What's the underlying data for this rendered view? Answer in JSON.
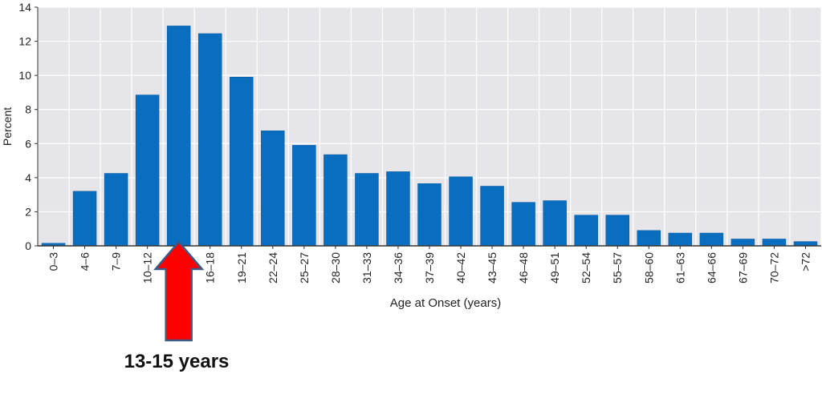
{
  "chart_data": {
    "type": "bar",
    "title": "",
    "xlabel": "Age at Onset (years)",
    "ylabel": "Percent",
    "ylim": [
      0,
      14
    ],
    "yticks": [
      0,
      2,
      4,
      6,
      8,
      10,
      12,
      14
    ],
    "grid": true,
    "categories": [
      "0–3",
      "4–6",
      "7–9",
      "10–12",
      "13–15",
      "16–18",
      "19–21",
      "22–24",
      "25–27",
      "28–30",
      "31–33",
      "34–36",
      "37–39",
      "40–42",
      "43–45",
      "46–48",
      "49–51",
      "52–54",
      "55–57",
      "58–60",
      "61–63",
      "64–66",
      "67–69",
      "70–72",
      ">72"
    ],
    "tick_labels": [
      "0–3",
      "4–6",
      "7–9",
      "10–12",
      "",
      "16–18",
      "19–21",
      "22–24",
      "25–27",
      "28–30",
      "31–33",
      "34–36",
      "37–39",
      "40–42",
      "43–45",
      "46–48",
      "49–51",
      "52–54",
      "55–57",
      "58–60",
      "61–63",
      "64–66",
      "67–69",
      "70–72",
      ">72"
    ],
    "values": [
      0.15,
      3.2,
      4.25,
      8.85,
      12.9,
      12.45,
      9.9,
      6.75,
      5.9,
      5.35,
      4.25,
      4.35,
      3.65,
      4.05,
      3.5,
      2.55,
      2.65,
      1.8,
      1.8,
      0.9,
      0.75,
      0.75,
      0.4,
      0.4,
      0.25
    ],
    "colors": {
      "bar": "#0a6ec0",
      "bar_edge": "#0a5ca3",
      "background": "#e6e6ea",
      "grid": "#ffffff",
      "axis": "#333333"
    },
    "annotation": {
      "text": "13-15 years",
      "category": "13–15",
      "arrow_color": "#ff0000",
      "arrow_edge": "#3a5a88"
    }
  }
}
